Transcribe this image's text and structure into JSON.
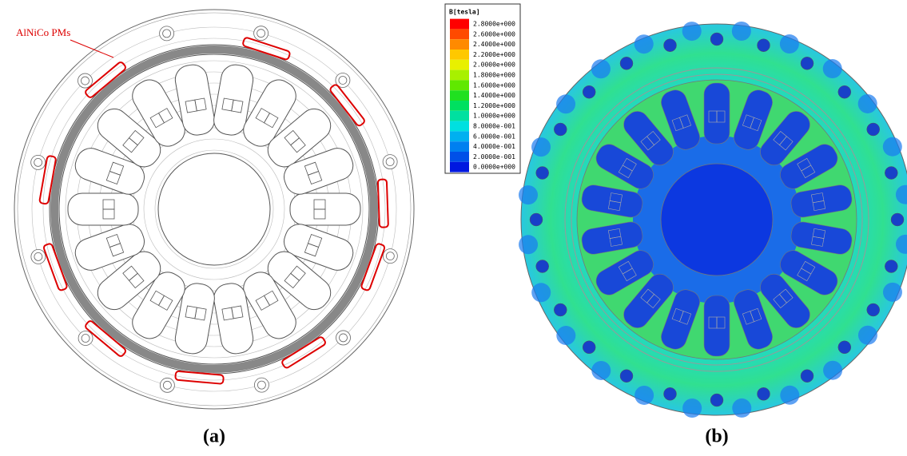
{
  "figure": {
    "panel_a": {
      "annotation": "AlNiCo PMs",
      "caption": "(a)"
    },
    "panel_b": {
      "caption": "(b)"
    },
    "legend": {
      "title": "B[tesla]",
      "items": [
        {
          "label": "2.8000e+000",
          "color": "#ff0000"
        },
        {
          "label": "2.6000e+000",
          "color": "#ff4a00"
        },
        {
          "label": "2.4000e+000",
          "color": "#ff8a00"
        },
        {
          "label": "2.2000e+000",
          "color": "#ffc800"
        },
        {
          "label": "2.0000e+000",
          "color": "#e8f000"
        },
        {
          "label": "1.8000e+000",
          "color": "#a8f000"
        },
        {
          "label": "1.6000e+000",
          "color": "#60e800"
        },
        {
          "label": "1.4000e+000",
          "color": "#20e020"
        },
        {
          "label": "1.2000e+000",
          "color": "#00e060"
        },
        {
          "label": "1.0000e+000",
          "color": "#00e0a0"
        },
        {
          "label": "8.0000e-001",
          "color": "#00e0e0"
        },
        {
          "label": "6.0000e-001",
          "color": "#00b0f0"
        },
        {
          "label": "4.0000e-001",
          "color": "#0080f0"
        },
        {
          "label": "2.0000e-001",
          "color": "#0050e8"
        },
        {
          "label": "0.0000e+000",
          "color": "#0018e0"
        }
      ]
    }
  }
}
